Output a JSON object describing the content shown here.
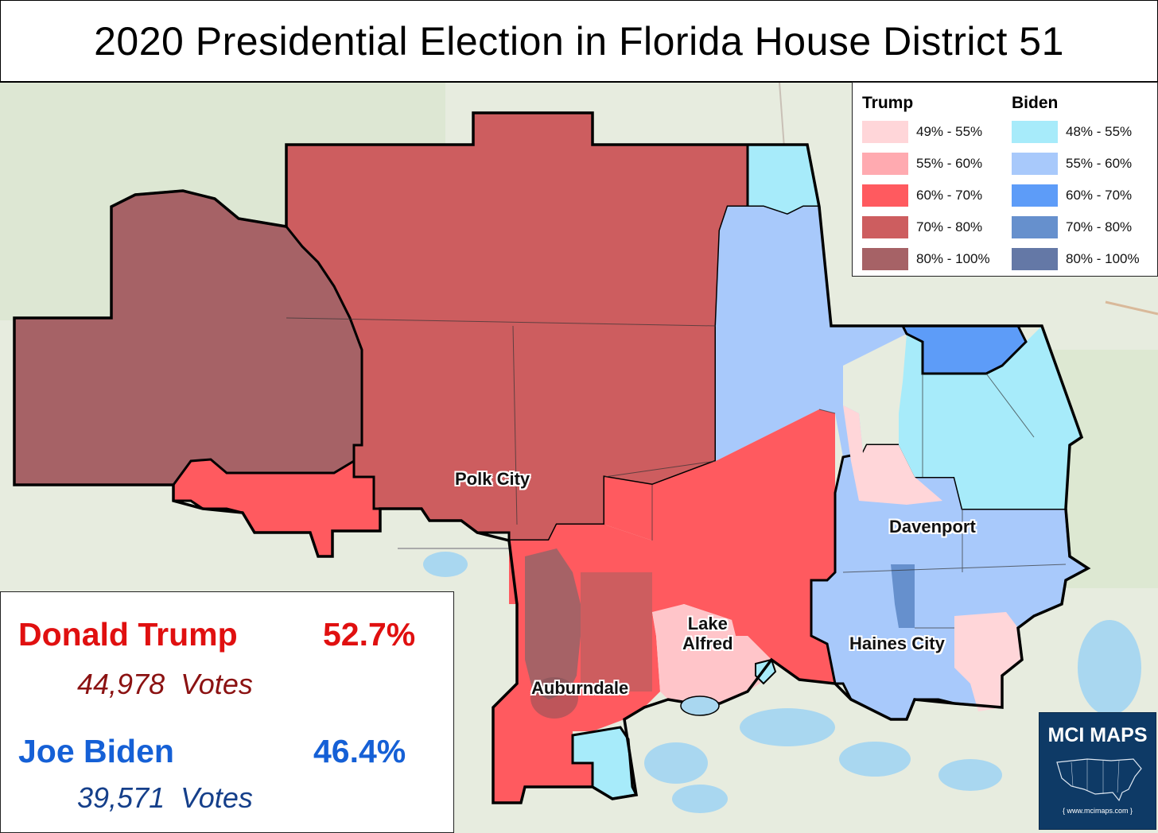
{
  "title": "2020 Presidential Election in Florida House District 51",
  "legend": {
    "trump_heading": "Trump",
    "biden_heading": "Biden",
    "trump_bins": [
      {
        "label": "49% - 55%",
        "color": "#ffd6d9"
      },
      {
        "label": "55% - 60%",
        "color": "#ffaab0"
      },
      {
        "label": "60% - 70%",
        "color": "#ff5a5f"
      },
      {
        "label": "70% - 80%",
        "color": "#cd5d5f"
      },
      {
        "label": "80% - 100%",
        "color": "#a66266"
      }
    ],
    "biden_bins": [
      {
        "label": "48% - 55%",
        "color": "#a7ebfa"
      },
      {
        "label": "55% - 60%",
        "color": "#a8c9fb"
      },
      {
        "label": "60% - 70%",
        "color": "#5d9cf8"
      },
      {
        "label": "70% - 80%",
        "color": "#6690cd"
      },
      {
        "label": "80% - 100%",
        "color": "#6478a6"
      }
    ]
  },
  "places": {
    "polk_city": "Polk City",
    "davenport": "Davenport",
    "lake_alfred": "Lake\nAlfred",
    "haines_city": "Haines City",
    "auburndale": "Auburndale"
  },
  "results": {
    "trump": {
      "name": "Donald Trump",
      "pct": "52.7%",
      "votes": "44,978  Votes",
      "color": "#e01010",
      "votes_color": "#8b1212"
    },
    "biden": {
      "name": "Joe Biden",
      "pct": "46.4%",
      "votes": "39,571  Votes",
      "color": "#1560d6",
      "votes_color": "#153f8a"
    }
  },
  "logo": {
    "title": "MCI MAPS",
    "url": "{ www.mcimaps.com }"
  }
}
